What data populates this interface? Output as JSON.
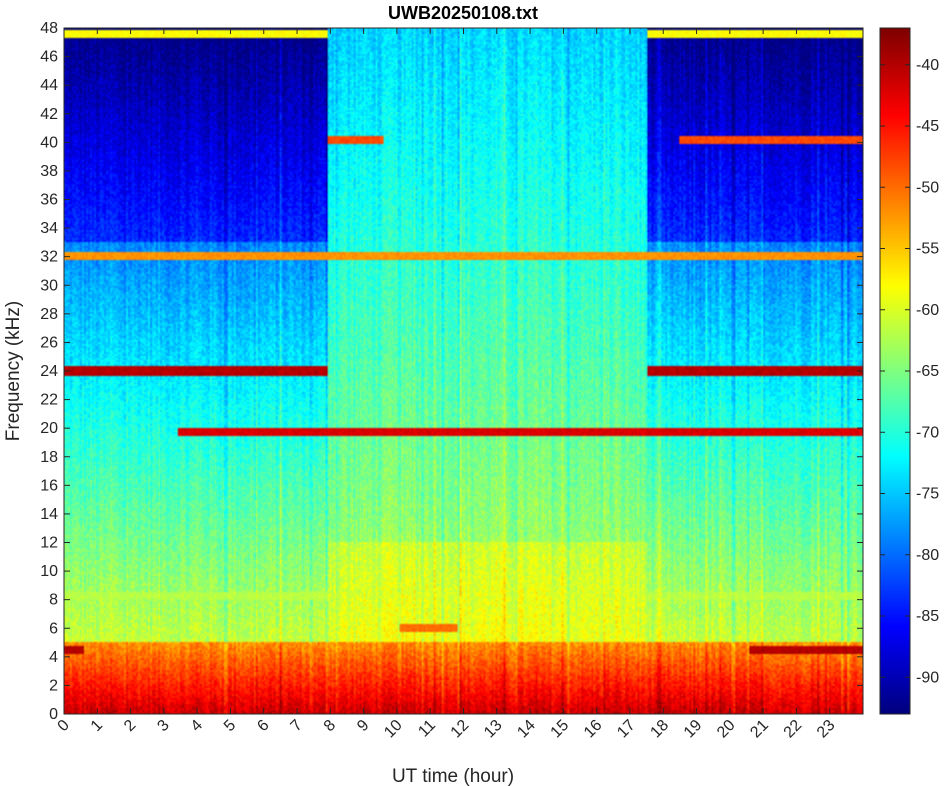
{
  "chart_data": {
    "type": "heatmap",
    "title": "UWB20250108.txt",
    "xlabel": "UT time (hour)",
    "ylabel": "Frequency (kHz)",
    "xlim": [
      0,
      24
    ],
    "ylim": [
      0,
      48
    ],
    "x_ticks": [
      0,
      1,
      2,
      3,
      4,
      5,
      6,
      7,
      8,
      9,
      10,
      11,
      12,
      13,
      14,
      15,
      16,
      17,
      18,
      19,
      20,
      21,
      22,
      23
    ],
    "y_ticks": [
      0,
      2,
      4,
      6,
      8,
      10,
      12,
      14,
      16,
      18,
      20,
      22,
      24,
      26,
      28,
      30,
      32,
      34,
      36,
      38,
      40,
      42,
      44,
      46,
      48
    ],
    "colorbar": {
      "ticks": [
        -40,
        -45,
        -50,
        -55,
        -60,
        -65,
        -70,
        -75,
        -80,
        -85,
        -90
      ],
      "range": [
        -93,
        -37
      ],
      "colormap": "jet"
    },
    "features": {
      "quiet_periods_hours": [
        [
          0,
          7.9
        ],
        [
          17.5,
          24
        ]
      ],
      "noisy_period_hours": [
        7.9,
        17.5
      ],
      "narrowband_lines_khz": [
        {
          "freq": 24.0,
          "level": -40,
          "hours": [
            [
              0,
              7.9
            ],
            [
              17.5,
              24
            ]
          ]
        },
        {
          "freq": 19.8,
          "level": -42,
          "hours": [
            [
              3.4,
              24
            ]
          ]
        },
        {
          "freq": 32.0,
          "level": -52,
          "hours": [
            [
              0,
              24
            ]
          ]
        },
        {
          "freq": 40.1,
          "level": -48,
          "hours": [
            [
              7.9,
              9.6
            ],
            [
              18.5,
              24
            ]
          ]
        },
        {
          "freq": 47.6,
          "level": -58,
          "hours": [
            [
              0,
              7.9
            ],
            [
              17.5,
              24
            ]
          ]
        },
        {
          "freq": 6.0,
          "level": -50,
          "hours": [
            [
              10.1,
              11.8
            ]
          ]
        },
        {
          "freq": 4.5,
          "level": -40,
          "hours": [
            [
              0,
              0.6
            ],
            [
              20.6,
              24
            ]
          ]
        },
        {
          "freq": 8.2,
          "level": -62,
          "hours": [
            [
              0,
              24
            ]
          ]
        }
      ],
      "low_frequency_noise_khz": [
        0,
        5
      ]
    }
  }
}
